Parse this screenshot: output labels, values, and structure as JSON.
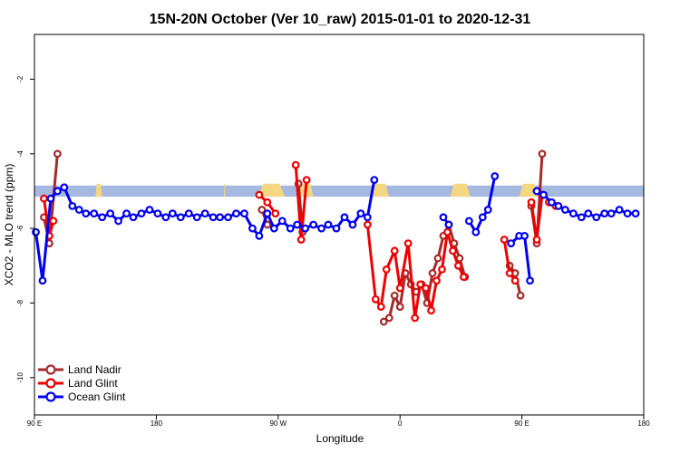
{
  "chart_data": {
    "type": "line",
    "title": "15N-20N October (Ver 10_raw)   2015-01-01 to 2020-12-31",
    "xlabel": "Longitude",
    "ylabel": "XCO2 - MLO trend (ppm)",
    "xlim": [
      0,
      450
    ],
    "ylim": [
      -11,
      -0.8
    ],
    "x_ticks": [
      {
        "value": 0,
        "label": "90 E"
      },
      {
        "value": 90,
        "label": "180"
      },
      {
        "value": 180,
        "label": "90 W"
      },
      {
        "value": 270,
        "label": "0"
      },
      {
        "value": 360,
        "label": "90 E"
      },
      {
        "value": 450,
        "label": "180"
      }
    ],
    "y_ticks": [
      {
        "value": -10,
        "label": "-10"
      },
      {
        "value": -8,
        "label": "-8"
      },
      {
        "value": -6,
        "label": "-6"
      },
      {
        "value": -4,
        "label": "-4"
      },
      {
        "value": -2,
        "label": "-2"
      }
    ],
    "land_band": {
      "y_min": -5.15,
      "y_max": -4.85,
      "ocean_color": "#a5b8e0",
      "land_color": "#f5d681"
    },
    "legend_position": "bottom-left",
    "series": [
      {
        "name": "Land Nadir",
        "color": "#a52a2a",
        "segments": [
          [
            [
              7,
              -5.7
            ],
            [
              11,
              -6.4
            ],
            [
              17,
              -4.0
            ]
          ],
          [
            [
              168,
              -5.5
            ],
            [
              172,
              -5.9
            ]
          ],
          [
            [
              195,
              -4.8
            ],
            [
              198,
              -6.1
            ]
          ],
          [
            [
              258,
              -8.5
            ],
            [
              262,
              -8.4
            ],
            [
              266,
              -7.8
            ],
            [
              270,
              -8.1
            ],
            [
              274,
              -7.2
            ],
            [
              278,
              -7.5
            ],
            [
              282,
              -7.7
            ],
            [
              286,
              -7.5
            ],
            [
              290,
              -8.0
            ],
            [
              294,
              -7.2
            ],
            [
              298,
              -6.8
            ],
            [
              302,
              -6.2
            ],
            [
              306,
              -5.9
            ],
            [
              310,
              -6.4
            ],
            [
              314,
              -6.8
            ],
            [
              318,
              -7.3
            ]
          ],
          [
            [
              351,
              -7.0
            ],
            [
              355,
              -7.2
            ],
            [
              359,
              -7.8
            ]
          ],
          [
            [
              367,
              -5.4
            ],
            [
              371,
              -6.4
            ],
            [
              375,
              -4.0
            ]
          ]
        ]
      },
      {
        "name": "Land Glint",
        "color": "#ee0000",
        "segments": [
          [
            [
              7,
              -5.2
            ],
            [
              11,
              -6.2
            ],
            [
              14,
              -5.8
            ]
          ],
          [
            [
              166,
              -5.1
            ],
            [
              172,
              -5.3
            ],
            [
              178,
              -5.6
            ]
          ],
          [
            [
              193,
              -4.3
            ],
            [
              197,
              -6.3
            ],
            [
              201,
              -4.7
            ]
          ],
          [
            [
              246,
              -5.9
            ],
            [
              252,
              -7.9
            ],
            [
              256,
              -8.1
            ],
            [
              260,
              -7.1
            ],
            [
              266,
              -6.6
            ],
            [
              270,
              -7.6
            ],
            [
              276,
              -6.4
            ],
            [
              281,
              -8.4
            ],
            [
              285,
              -7.5
            ],
            [
              289,
              -7.6
            ],
            [
              293,
              -8.2
            ],
            [
              297,
              -7.4
            ],
            [
              301,
              -7.1
            ],
            [
              305,
              -6.1
            ],
            [
              309,
              -6.6
            ],
            [
              313,
              -7.0
            ],
            [
              317,
              -7.3
            ]
          ],
          [
            [
              347,
              -6.3
            ],
            [
              351,
              -7.2
            ],
            [
              355,
              -7.4
            ]
          ],
          [
            [
              367,
              -5.3
            ],
            [
              371,
              -6.3
            ],
            [
              375,
              -5.1
            ]
          ],
          [
            [
              380,
              -5.3
            ],
            [
              385,
              -5.4
            ]
          ]
        ]
      },
      {
        "name": "Ocean Glint",
        "color": "#0000ee",
        "segments": [
          [
            [
              1,
              -6.1
            ],
            [
              6,
              -7.4
            ],
            [
              12,
              -5.2
            ],
            [
              17,
              -5.0
            ],
            [
              22,
              -4.9
            ],
            [
              28,
              -5.4
            ],
            [
              33,
              -5.5
            ],
            [
              38,
              -5.6
            ],
            [
              44,
              -5.6
            ],
            [
              50,
              -5.7
            ],
            [
              56,
              -5.6
            ],
            [
              62,
              -5.8
            ],
            [
              68,
              -5.6
            ],
            [
              73,
              -5.7
            ],
            [
              79,
              -5.6
            ],
            [
              85,
              -5.5
            ],
            [
              91,
              -5.6
            ],
            [
              97,
              -5.7
            ],
            [
              102,
              -5.6
            ],
            [
              108,
              -5.7
            ],
            [
              114,
              -5.6
            ],
            [
              120,
              -5.7
            ],
            [
              126,
              -5.6
            ],
            [
              132,
              -5.7
            ],
            [
              137,
              -5.7
            ],
            [
              143,
              -5.7
            ],
            [
              149,
              -5.6
            ],
            [
              155,
              -5.6
            ],
            [
              161,
              -6.0
            ],
            [
              166,
              -6.2
            ],
            [
              172,
              -5.6
            ],
            [
              177,
              -6.0
            ],
            [
              183,
              -5.8
            ],
            [
              189,
              -6.0
            ],
            [
              194,
              -5.9
            ],
            [
              200,
              -6.0
            ],
            [
              206,
              -5.9
            ],
            [
              212,
              -6.0
            ],
            [
              217,
              -5.9
            ],
            [
              223,
              -6.0
            ],
            [
              229,
              -5.7
            ],
            [
              235,
              -5.9
            ],
            [
              241,
              -5.6
            ],
            [
              246,
              -5.7
            ],
            [
              251,
              -4.7
            ]
          ],
          [
            [
              302,
              -5.7
            ],
            [
              306,
              -5.9
            ]
          ],
          [
            [
              321,
              -5.8
            ],
            [
              326,
              -6.1
            ],
            [
              331,
              -5.7
            ],
            [
              335,
              -5.5
            ],
            [
              340,
              -4.6
            ]
          ],
          [
            [
              352,
              -6.4
            ],
            [
              358,
              -6.2
            ],
            [
              362,
              -6.2
            ],
            [
              366,
              -7.4
            ]
          ],
          [
            [
              371,
              -5.0
            ],
            [
              376,
              -5.1
            ],
            [
              382,
              -5.3
            ],
            [
              387,
              -5.4
            ],
            [
              392,
              -5.5
            ],
            [
              398,
              -5.6
            ],
            [
              404,
              -5.7
            ],
            [
              409,
              -5.6
            ],
            [
              415,
              -5.7
            ],
            [
              421,
              -5.6
            ],
            [
              426,
              -5.6
            ],
            [
              432,
              -5.5
            ],
            [
              438,
              -5.6
            ],
            [
              444,
              -5.6
            ]
          ]
        ]
      }
    ]
  }
}
